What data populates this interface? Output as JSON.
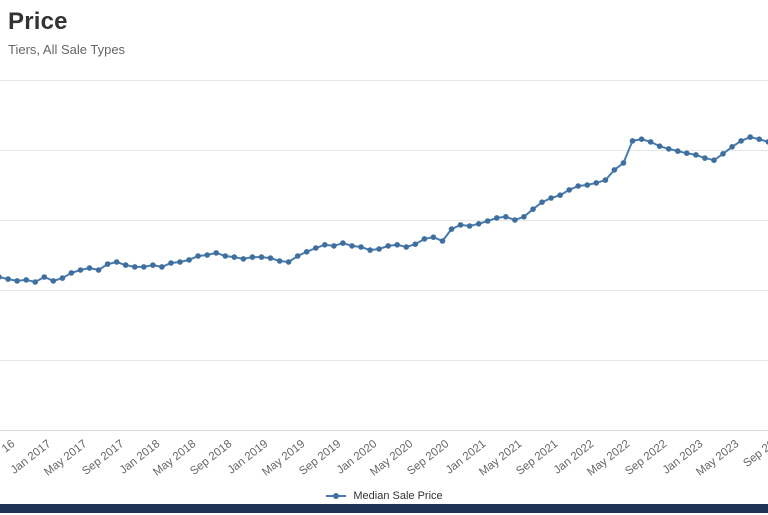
{
  "header": {
    "title": "Price",
    "subtitle": "Tiers, All Sale Types"
  },
  "legend": {
    "label": "Median Sale Price"
  },
  "colors": {
    "line": "#4a7cab",
    "marker": "#3f6f9f",
    "grid": "#e6e6e6",
    "axis": "#d9d9d9",
    "title": "#333333",
    "subtitle": "#666666",
    "tick": "#666666",
    "footer": "#1d3457"
  },
  "chart_data": {
    "type": "line",
    "title": "Price",
    "subtitle": "Tiers, All Sale Types",
    "xlabel": "",
    "ylabel": "",
    "y_axis_labels_visible": false,
    "value_units": "relative 0-100 of plot height (no y-axis labels visible in image)",
    "grid": "horizontal",
    "legend_position": "bottom-center",
    "x_tick_labels": [
      "16",
      "Jan 2017",
      "May 2017",
      "Sep 2017",
      "Jan 2018",
      "May 2018",
      "Sep 2018",
      "Jan 2019",
      "May 2019",
      "Sep 2019",
      "Jan 2020",
      "May 2020",
      "Sep 2020",
      "Jan 2021",
      "May 2021",
      "Sep 2021",
      "Jan 2022",
      "May 2022",
      "Sep 2022",
      "Jan 2023",
      "May 2023",
      "Sep 20"
    ],
    "x": [
      "Aug 2016",
      "Sep 2016",
      "Oct 2016",
      "Nov 2016",
      "Dec 2016",
      "Jan 2017",
      "Feb 2017",
      "Mar 2017",
      "Apr 2017",
      "May 2017",
      "Jun 2017",
      "Jul 2017",
      "Aug 2017",
      "Sep 2017",
      "Oct 2017",
      "Nov 2017",
      "Dec 2017",
      "Jan 2018",
      "Feb 2018",
      "Mar 2018",
      "Apr 2018",
      "May 2018",
      "Jun 2018",
      "Jul 2018",
      "Aug 2018",
      "Sep 2018",
      "Oct 2018",
      "Nov 2018",
      "Dec 2018",
      "Jan 2019",
      "Feb 2019",
      "Mar 2019",
      "Apr 2019",
      "May 2019",
      "Jun 2019",
      "Jul 2019",
      "Aug 2019",
      "Sep 2019",
      "Oct 2019",
      "Nov 2019",
      "Dec 2019",
      "Jan 2020",
      "Feb 2020",
      "Mar 2020",
      "Apr 2020",
      "May 2020",
      "Jun 2020",
      "Jul 2020",
      "Aug 2020",
      "Sep 2020",
      "Oct 2020",
      "Nov 2020",
      "Dec 2020",
      "Jan 2021",
      "Feb 2021",
      "Mar 2021",
      "Apr 2021",
      "May 2021",
      "Jun 2021",
      "Jul 2021",
      "Aug 2021",
      "Sep 2021",
      "Oct 2021",
      "Nov 2021",
      "Dec 2021",
      "Jan 2022",
      "Feb 2022",
      "Mar 2022",
      "Apr 2022",
      "May 2022",
      "Jun 2022",
      "Jul 2022",
      "Aug 2022",
      "Sep 2022",
      "Oct 2022",
      "Nov 2022",
      "Dec 2022",
      "Jan 2023",
      "Feb 2023",
      "Mar 2023",
      "Apr 2023",
      "May 2023",
      "Jun 2023",
      "Jul 2023",
      "Aug 2023",
      "Sep 2023"
    ],
    "series": [
      {
        "name": "Median Sale Price",
        "values": [
          43.7,
          43.1,
          42.6,
          42.9,
          42.3,
          43.7,
          42.6,
          43.4,
          44.9,
          45.7,
          46.3,
          45.7,
          47.4,
          48.0,
          47.1,
          46.6,
          46.6,
          47.1,
          46.6,
          47.7,
          48.0,
          48.6,
          49.7,
          50.0,
          50.6,
          49.7,
          49.4,
          48.9,
          49.4,
          49.4,
          49.1,
          48.3,
          48.0,
          49.7,
          50.9,
          52.0,
          52.9,
          52.6,
          53.4,
          52.6,
          52.3,
          51.4,
          51.7,
          52.6,
          52.9,
          52.3,
          53.1,
          54.6,
          55.1,
          54.0,
          57.4,
          58.6,
          58.3,
          58.9,
          59.7,
          60.6,
          60.9,
          60.0,
          60.9,
          63.1,
          65.1,
          66.3,
          67.1,
          68.6,
          69.7,
          70.0,
          70.6,
          71.4,
          74.3,
          76.3,
          82.6,
          83.1,
          82.3,
          81.1,
          80.3,
          79.7,
          79.1,
          78.6,
          77.7,
          77.1,
          78.9,
          80.9,
          82.6,
          83.7,
          83.1,
          82.3
        ]
      }
    ]
  }
}
